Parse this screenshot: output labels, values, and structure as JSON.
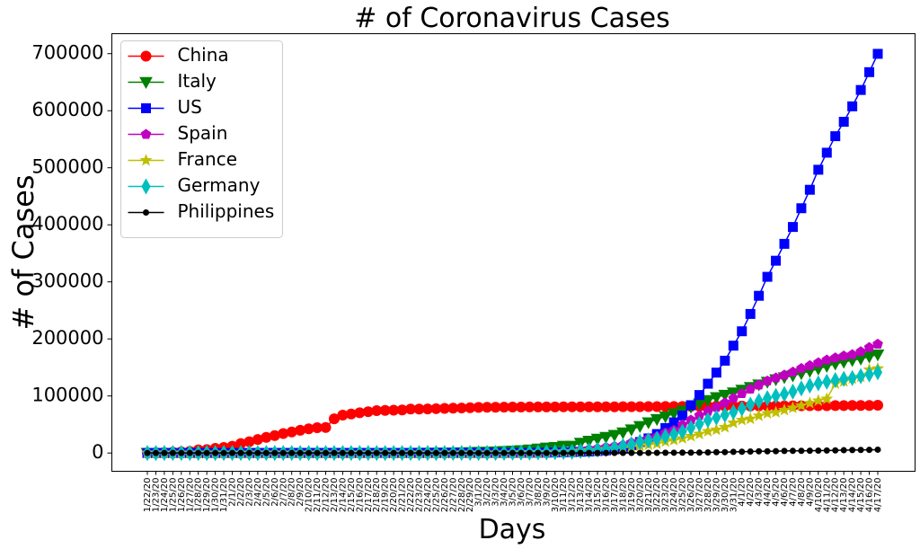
{
  "chart_data": {
    "type": "line",
    "title": "# of Coronavirus Cases",
    "xlabel": "Days",
    "ylabel": "# of Cases",
    "ylim": [
      -32000,
      735000
    ],
    "yticks": [
      0,
      100000,
      200000,
      300000,
      400000,
      500000,
      600000,
      700000
    ],
    "ytick_labels": [
      "0",
      "100000",
      "200000",
      "300000",
      "400000",
      "500000",
      "600000",
      "700000"
    ],
    "legend_position": "upper-left",
    "grid": false,
    "categories": [
      "1/22/20",
      "1/23/20",
      "1/24/20",
      "1/25/20",
      "1/26/20",
      "1/27/20",
      "1/28/20",
      "1/29/20",
      "1/30/20",
      "1/31/20",
      "2/1/20",
      "2/2/20",
      "2/3/20",
      "2/4/20",
      "2/5/20",
      "2/6/20",
      "2/7/20",
      "2/8/20",
      "2/9/20",
      "2/10/20",
      "2/11/20",
      "2/12/20",
      "2/13/20",
      "2/14/20",
      "2/15/20",
      "2/16/20",
      "2/17/20",
      "2/18/20",
      "2/19/20",
      "2/20/20",
      "2/21/20",
      "2/22/20",
      "2/23/20",
      "2/24/20",
      "2/25/20",
      "2/26/20",
      "2/27/20",
      "2/28/20",
      "2/29/20",
      "3/1/20",
      "3/2/20",
      "3/3/20",
      "3/4/20",
      "3/5/20",
      "3/6/20",
      "3/7/20",
      "3/8/20",
      "3/9/20",
      "3/10/20",
      "3/11/20",
      "3/12/20",
      "3/13/20",
      "3/14/20",
      "3/15/20",
      "3/16/20",
      "3/17/20",
      "3/18/20",
      "3/19/20",
      "3/20/20",
      "3/21/20",
      "3/22/20",
      "3/23/20",
      "3/24/20",
      "3/25/20",
      "3/26/20",
      "3/27/20",
      "3/28/20",
      "3/29/20",
      "3/30/20",
      "3/31/20",
      "4/1/20",
      "4/2/20",
      "4/3/20",
      "4/4/20",
      "4/5/20",
      "4/6/20",
      "4/7/20",
      "4/8/20",
      "4/9/20",
      "4/10/20",
      "4/11/20",
      "4/12/20",
      "4/13/20",
      "4/14/20",
      "4/15/20",
      "4/16/20",
      "4/17/20"
    ],
    "series": [
      {
        "name": "China",
        "color": "#ff0000",
        "marker": "circle",
        "values": [
          548,
          643,
          920,
          1406,
          2075,
          2877,
          5509,
          6087,
          8141,
          9802,
          11891,
          16630,
          19716,
          23707,
          27440,
          30587,
          34110,
          36814,
          39829,
          42354,
          44386,
          44759,
          59895,
          66358,
          68413,
          70513,
          72434,
          74211,
          74619,
          75077,
          75550,
          77001,
          77022,
          77241,
          77754,
          78166,
          78600,
          78928,
          79356,
          79932,
          80136,
          80261,
          80386,
          80537,
          80690,
          80770,
          80823,
          80860,
          80887,
          80921,
          80932,
          80945,
          80977,
          81003,
          81033,
          81058,
          81102,
          81156,
          81250,
          81305,
          81435,
          81498,
          81591,
          81661,
          81782,
          81897,
          81999,
          82122,
          82198,
          82279,
          82361,
          82432,
          82511,
          82543,
          82602,
          82665,
          82718,
          82809,
          82883,
          82941,
          83014,
          83134,
          83213,
          83306,
          83356,
          83403,
          83760
        ]
      },
      {
        "name": "Italy",
        "color": "#008000",
        "marker": "triangle-down",
        "values": [
          0,
          0,
          0,
          0,
          0,
          0,
          0,
          0,
          0,
          2,
          2,
          2,
          2,
          2,
          2,
          2,
          3,
          3,
          3,
          3,
          3,
          3,
          3,
          3,
          3,
          3,
          3,
          3,
          3,
          3,
          20,
          62,
          155,
          229,
          322,
          453,
          655,
          888,
          1128,
          1694,
          2036,
          2502,
          3089,
          3858,
          4636,
          5883,
          7375,
          9172,
          10149,
          12462,
          12462,
          17660,
          21157,
          24747,
          27980,
          31506,
          35713,
          41035,
          47021,
          53578,
          59138,
          63927,
          69176,
          74386,
          80589,
          86498,
          92472,
          97689,
          101739,
          105792,
          110574,
          115242,
          119827,
          124632,
          128948,
          132547,
          135586,
          139422,
          143626,
          147577,
          152271,
          156363,
          159516,
          162488,
          165155,
          168941,
          172434
        ]
      },
      {
        "name": "US",
        "color": "#0000ff",
        "marker": "square",
        "values": [
          1,
          1,
          2,
          2,
          5,
          5,
          5,
          5,
          5,
          7,
          8,
          8,
          11,
          11,
          11,
          11,
          11,
          11,
          11,
          11,
          12,
          12,
          13,
          13,
          13,
          13,
          13,
          13,
          13,
          13,
          15,
          15,
          15,
          51,
          51,
          57,
          58,
          60,
          68,
          74,
          98,
          118,
          149,
          217,
          262,
          402,
          518,
          583,
          959,
          1281,
          1663,
          2179,
          2727,
          3499,
          4632,
          6421,
          7783,
          13747,
          19273,
          25600,
          33276,
          43843,
          53740,
          65778,
          83836,
          101657,
          121465,
          140909,
          161831,
          188172,
          213372,
          243762,
          275586,
          308853,
          337072,
          366667,
          396223,
          429052,
          461437,
          496535,
          526396,
          555313,
          580619,
          607670,
          636350,
          667592,
          699706
        ]
      },
      {
        "name": "Spain",
        "color": "#c000c0",
        "marker": "pentagon",
        "values": [
          0,
          0,
          0,
          0,
          0,
          0,
          0,
          0,
          0,
          0,
          1,
          1,
          1,
          1,
          1,
          1,
          1,
          1,
          2,
          2,
          2,
          2,
          2,
          2,
          2,
          2,
          2,
          2,
          2,
          2,
          2,
          2,
          2,
          2,
          6,
          13,
          15,
          32,
          45,
          84,
          120,
          165,
          222,
          259,
          400,
          500,
          673,
          1073,
          1695,
          2277,
          2277,
          5232,
          6391,
          7798,
          9942,
          11748,
          13910,
          17963,
          20410,
          25374,
          28768,
          35136,
          39885,
          49515,
          57786,
          65719,
          73235,
          80110,
          87956,
          95923,
          104118,
          112065,
          119199,
          126168,
          131646,
          136675,
          141942,
          148220,
          153222,
          158273,
          163027,
          166831,
          170099,
          172541,
          177644,
          184948,
          190839
        ]
      },
      {
        "name": "France",
        "color": "#bfbf00",
        "marker": "star",
        "values": [
          0,
          0,
          2,
          3,
          3,
          3,
          4,
          5,
          5,
          5,
          6,
          6,
          6,
          6,
          6,
          6,
          6,
          11,
          11,
          11,
          11,
          11,
          11,
          11,
          12,
          12,
          12,
          12,
          12,
          12,
          12,
          12,
          12,
          12,
          14,
          18,
          38,
          57,
          100,
          130,
          191,
          204,
          288,
          380,
          656,
          959,
          1136,
          1219,
          1794,
          2293,
          2293,
          3681,
          4496,
          4532,
          6683,
          7715,
          9124,
          10970,
          12758,
          14463,
          16243,
          20123,
          22622,
          25600,
          29551,
          33402,
          38105,
          40708,
          45170,
          52827,
          57749,
          59929,
          65202,
          69500,
          71412,
          75343,
          79163,
          83057,
          87366,
          91738,
          94863,
          121712,
          125394,
          130365,
          133585,
          146075,
          148084
        ]
      },
      {
        "name": "Germany",
        "color": "#00bfbf",
        "marker": "thin-diamond",
        "values": [
          0,
          0,
          0,
          0,
          0,
          1,
          4,
          4,
          4,
          5,
          8,
          10,
          12,
          12,
          12,
          12,
          13,
          13,
          14,
          14,
          16,
          16,
          16,
          16,
          16,
          16,
          16,
          16,
          16,
          16,
          16,
          16,
          16,
          16,
          17,
          27,
          46,
          48,
          79,
          130,
          159,
          196,
          262,
          482,
          670,
          799,
          1040,
          1176,
          1457,
          1908,
          2078,
          3675,
          4585,
          5795,
          7272,
          9257,
          12327,
          15320,
          19848,
          22213,
          24873,
          29056,
          32986,
          37323,
          43938,
          50871,
          57695,
          62095,
          66885,
          71808,
          77872,
          84794,
          91159,
          96092,
          100123,
          103374,
          107663,
          113296,
          118181,
          122171,
          124908,
          127854,
          130072,
          131359,
          134753,
          137698,
          141397
        ]
      },
      {
        "name": "Philippines",
        "color": "#000000",
        "marker": "dot",
        "values": [
          0,
          0,
          0,
          0,
          0,
          0,
          0,
          0,
          0,
          1,
          1,
          2,
          2,
          2,
          2,
          3,
          3,
          3,
          3,
          3,
          3,
          3,
          3,
          3,
          3,
          3,
          3,
          3,
          3,
          3,
          3,
          3,
          3,
          3,
          3,
          3,
          3,
          3,
          3,
          3,
          3,
          3,
          3,
          3,
          5,
          6,
          10,
          20,
          33,
          49,
          52,
          64,
          111,
          140,
          142,
          187,
          202,
          217,
          230,
          307,
          380,
          462,
          552,
          636,
          707,
          803,
          1075,
          1418,
          1546,
          2084,
          2311,
          2633,
          3018,
          3094,
          3246,
          3660,
          3764,
          3870,
          4076,
          4195,
          4428,
          4648,
          4932,
          5223,
          5453,
          5660,
          5878
        ]
      }
    ]
  }
}
